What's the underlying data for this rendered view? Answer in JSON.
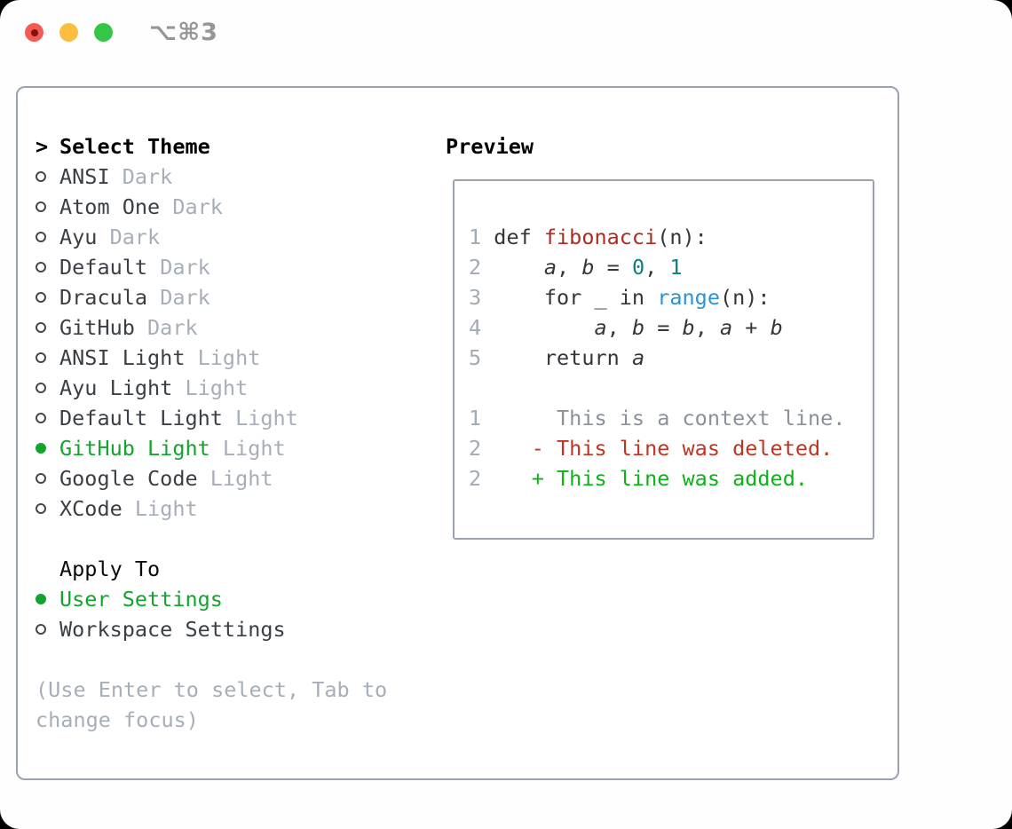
{
  "window": {
    "title": "⌥⌘3",
    "traffic_lights": [
      {
        "name": "close",
        "color": "#f25c54",
        "has_dot": true
      },
      {
        "name": "minimize",
        "color": "#fcbe3f",
        "has_dot": false
      },
      {
        "name": "zoom",
        "color": "#35c547",
        "has_dot": false
      }
    ]
  },
  "theme_list": {
    "header_prefix": ">",
    "header": "Select Theme",
    "items": [
      {
        "name": "ANSI",
        "variant": "Dark",
        "selected": false
      },
      {
        "name": "Atom One",
        "variant": "Dark",
        "selected": false
      },
      {
        "name": "Ayu",
        "variant": "Dark",
        "selected": false
      },
      {
        "name": "Default",
        "variant": "Dark",
        "selected": false
      },
      {
        "name": "Dracula",
        "variant": "Dark",
        "selected": false
      },
      {
        "name": "GitHub",
        "variant": "Dark",
        "selected": false
      },
      {
        "name": "ANSI Light",
        "variant": "Light",
        "selected": false
      },
      {
        "name": "Ayu Light",
        "variant": "Light",
        "selected": false
      },
      {
        "name": "Default Light",
        "variant": "Light",
        "selected": false
      },
      {
        "name": "GitHub Light",
        "variant": "Light",
        "selected": true
      },
      {
        "name": "Google Code",
        "variant": "Light",
        "selected": false
      },
      {
        "name": "XCode",
        "variant": "Light",
        "selected": false
      }
    ]
  },
  "apply_to": {
    "header": "Apply To",
    "options": [
      {
        "label": "User Settings",
        "selected": true
      },
      {
        "label": "Workspace Settings",
        "selected": false
      }
    ]
  },
  "help_text": "(Use Enter to select, Tab to change focus)",
  "preview": {
    "header": "Preview",
    "lines": [
      {
        "segments": [
          [
            "lineno",
            "1 "
          ],
          [
            "plain",
            "def "
          ],
          [
            "func",
            "fibonacci"
          ],
          [
            "plain",
            "(n):"
          ]
        ]
      },
      {
        "segments": [
          [
            "lineno",
            "2 "
          ],
          [
            "plain",
            "    "
          ],
          [
            "var",
            "a"
          ],
          [
            "plain",
            ", "
          ],
          [
            "var",
            "b"
          ],
          [
            "plain",
            " = "
          ],
          [
            "num",
            "0"
          ],
          [
            "plain",
            ", "
          ],
          [
            "num",
            "1"
          ]
        ]
      },
      {
        "segments": [
          [
            "lineno",
            "3 "
          ],
          [
            "plain",
            "    for _ in "
          ],
          [
            "builtin",
            "range"
          ],
          [
            "plain",
            "(n):"
          ]
        ]
      },
      {
        "segments": [
          [
            "lineno",
            "4 "
          ],
          [
            "plain",
            "        "
          ],
          [
            "var",
            "a"
          ],
          [
            "plain",
            ", "
          ],
          [
            "var",
            "b"
          ],
          [
            "plain",
            " = "
          ],
          [
            "var",
            "b"
          ],
          [
            "plain",
            ", "
          ],
          [
            "var",
            "a"
          ],
          [
            "plain",
            " + "
          ],
          [
            "var",
            "b"
          ]
        ]
      },
      {
        "segments": [
          [
            "lineno",
            "5 "
          ],
          [
            "plain",
            "    return "
          ],
          [
            "var",
            "a"
          ]
        ]
      },
      {
        "segments": []
      },
      {
        "segments": [
          [
            "lineno",
            "1 "
          ],
          [
            "ctx",
            "     This is a context line."
          ]
        ]
      },
      {
        "segments": [
          [
            "lineno",
            "2 "
          ],
          [
            "del",
            "   - This line was deleted."
          ]
        ]
      },
      {
        "segments": [
          [
            "lineno",
            "2 "
          ],
          [
            "add",
            "   + This line was added."
          ]
        ]
      }
    ]
  },
  "colors": {
    "accent_green": "#12a42d",
    "added_green": "#0ab417",
    "deleted_red": "#c03522",
    "function_red": "#ad2c1e",
    "number_teal": "#107e80",
    "builtin_blue": "#2a93d6",
    "context_gray": "#8b9199",
    "muted": "#a6aeb9",
    "text": "#3a3f45",
    "lineno": "#a2aab4",
    "border": "#9aa3ad",
    "traffic_red": "#f25c54",
    "traffic_yellow": "#fcbe3f",
    "traffic_green": "#35c547"
  }
}
